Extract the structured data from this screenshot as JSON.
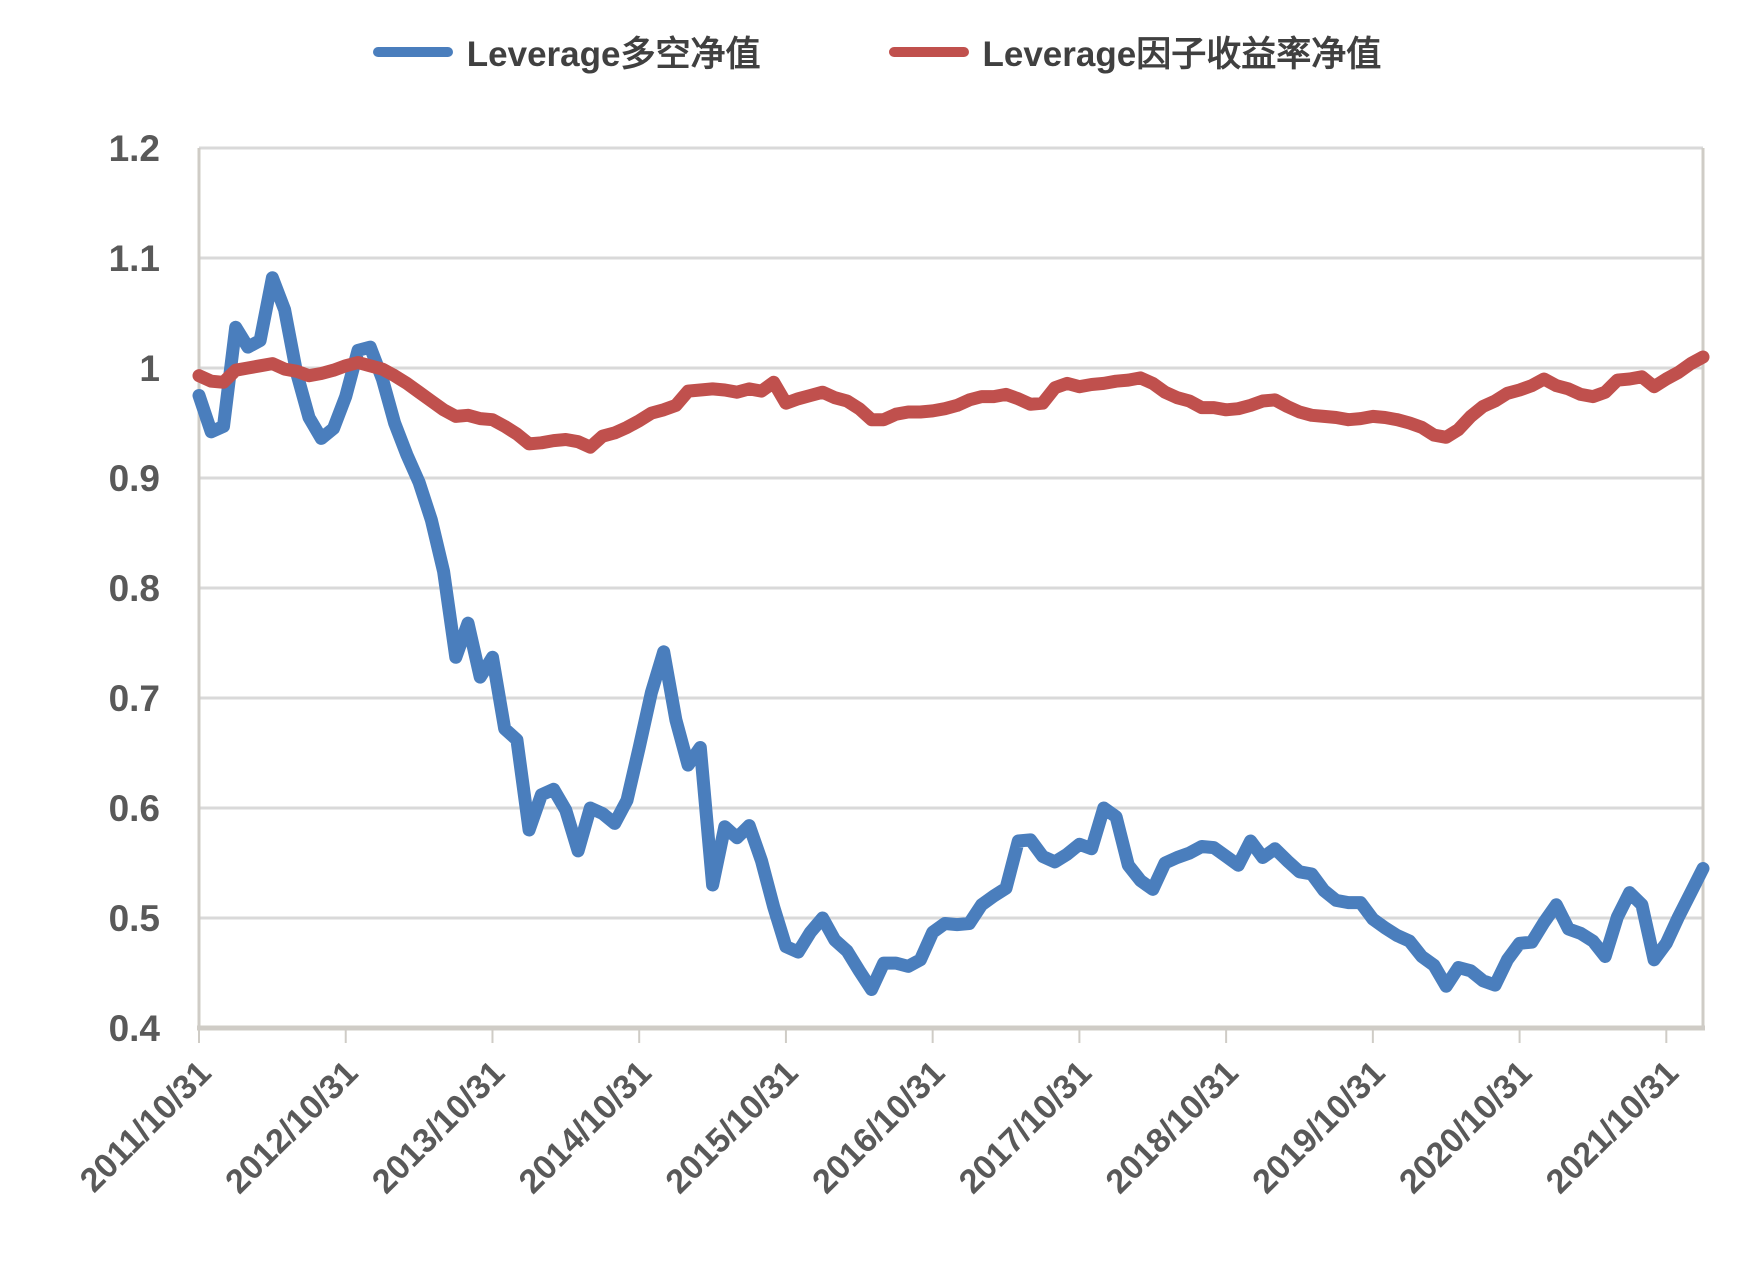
{
  "legend": [
    {
      "name": "Leverage多空净值",
      "color": "#4a7ebd"
    },
    {
      "name": "Leverage因子收益率净值",
      "color": "#c0504d"
    }
  ],
  "colors": {
    "blue_series": "#4a7ebd",
    "red_series": "#c0504d",
    "axis_text": "#595959",
    "gridline": "#d9d9d9",
    "axis_line": "#cfccc6",
    "background": "#ffffff"
  },
  "chart_data": {
    "type": "line",
    "title": "",
    "xlabel": "",
    "ylabel": "",
    "grid": "horizontal",
    "legend_position": "top",
    "ylim": [
      0.4,
      1.2
    ],
    "y_tick_labels": [
      "1.2",
      "1.1",
      "1",
      "0.9",
      "0.8",
      "0.7",
      "0.6",
      "0.5",
      "0.4"
    ],
    "y_tick_values": [
      1.2,
      1.1,
      1.0,
      0.9,
      0.8,
      0.7,
      0.6,
      0.5,
      0.4
    ],
    "x_tick_labels": [
      "2011/10/31",
      "2012/10/31",
      "2013/10/31",
      "2014/10/31",
      "2015/10/31",
      "2016/10/31",
      "2017/10/31",
      "2018/10/31",
      "2019/10/31",
      "2020/10/31",
      "2021/10/31"
    ],
    "x_label_every": 12,
    "points_count": 124,
    "x_note": "monthly points, first point at first tick (2011/10/31), data extends 3 months past last tick",
    "series": [
      {
        "name": "Leverage多空净值",
        "color": "#4a7ebd",
        "values": [
          0.975,
          0.942,
          0.947,
          1.037,
          1.019,
          1.025,
          1.082,
          1.053,
          0.995,
          0.955,
          0.936,
          0.945,
          0.974,
          1.016,
          1.019,
          0.99,
          0.95,
          0.921,
          0.896,
          0.862,
          0.815,
          0.737,
          0.768,
          0.719,
          0.737,
          0.672,
          0.662,
          0.58,
          0.612,
          0.617,
          0.598,
          0.561,
          0.6,
          0.595,
          0.586,
          0.607,
          0.655,
          0.705,
          0.742,
          0.68,
          0.639,
          0.655,
          0.53,
          0.583,
          0.573,
          0.584,
          0.552,
          0.51,
          0.474,
          0.469,
          0.487,
          0.5,
          0.48,
          0.47,
          0.452,
          0.435,
          0.459,
          0.459,
          0.456,
          0.462,
          0.487,
          0.495,
          0.494,
          0.495,
          0.512,
          0.52,
          0.527,
          0.57,
          0.571,
          0.556,
          0.551,
          0.558,
          0.567,
          0.563,
          0.6,
          0.592,
          0.548,
          0.534,
          0.526,
          0.55,
          0.555,
          0.559,
          0.565,
          0.564,
          0.556,
          0.548,
          0.57,
          0.555,
          0.563,
          0.552,
          0.542,
          0.54,
          0.525,
          0.516,
          0.514,
          0.514,
          0.499,
          0.491,
          0.484,
          0.479,
          0.465,
          0.457,
          0.438,
          0.455,
          0.452,
          0.443,
          0.439,
          0.462,
          0.477,
          0.478,
          0.496,
          0.512,
          0.49,
          0.486,
          0.479,
          0.465,
          0.501,
          0.523,
          0.512,
          0.462,
          0.477,
          0.501,
          0.523,
          0.545
        ]
      },
      {
        "name": "Leverage因子收益率净值",
        "color": "#c0504d",
        "values": [
          0.993,
          0.988,
          0.987,
          0.998,
          1.0,
          1.002,
          1.004,
          0.999,
          0.997,
          0.993,
          0.995,
          0.998,
          1.002,
          1.005,
          1.002,
          0.999,
          0.993,
          0.986,
          0.978,
          0.97,
          0.962,
          0.956,
          0.957,
          0.954,
          0.953,
          0.947,
          0.94,
          0.931,
          0.932,
          0.934,
          0.935,
          0.933,
          0.928,
          0.938,
          0.941,
          0.946,
          0.952,
          0.959,
          0.962,
          0.966,
          0.979,
          0.98,
          0.981,
          0.98,
          0.978,
          0.981,
          0.979,
          0.987,
          0.968,
          0.972,
          0.975,
          0.978,
          0.973,
          0.97,
          0.963,
          0.953,
          0.953,
          0.958,
          0.96,
          0.96,
          0.961,
          0.963,
          0.966,
          0.971,
          0.974,
          0.974,
          0.976,
          0.972,
          0.967,
          0.968,
          0.982,
          0.986,
          0.983,
          0.985,
          0.986,
          0.988,
          0.989,
          0.991,
          0.986,
          0.978,
          0.973,
          0.97,
          0.964,
          0.964,
          0.962,
          0.963,
          0.966,
          0.97,
          0.971,
          0.965,
          0.96,
          0.957,
          0.956,
          0.955,
          0.953,
          0.954,
          0.956,
          0.955,
          0.953,
          0.95,
          0.946,
          0.939,
          0.937,
          0.944,
          0.956,
          0.965,
          0.97,
          0.977,
          0.98,
          0.984,
          0.99,
          0.984,
          0.981,
          0.976,
          0.974,
          0.978,
          0.989,
          0.99,
          0.992,
          0.983,
          0.99,
          0.996,
          1.004,
          1.01
        ]
      }
    ]
  }
}
